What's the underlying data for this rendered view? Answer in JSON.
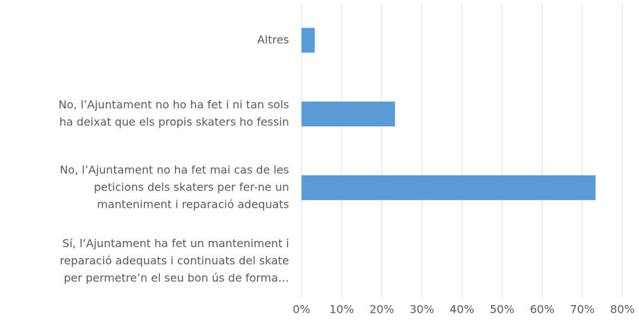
{
  "chart_data": {
    "type": "barh",
    "categories": [
      [
        "Altres"
      ],
      [
        "No, l’Ajuntament no ho ha fet i ni tan sols",
        "ha deixat que els propis skaters ho fessin"
      ],
      [
        "No, l’Ajuntament no ha fet mai cas de les",
        "peticions dels skaters per fer-ne un",
        "manteniment i reparació adequats"
      ],
      [
        "Sí, l’Ajuntament ha fet un manteniment i",
        "reparació adequats i continuats del skate",
        "per permetre’n el seu bon ús de forma…"
      ]
    ],
    "values": [
      3.3,
      23.3,
      73.3,
      0
    ],
    "color": "#5b9bd5",
    "xlim": [
      0,
      80
    ],
    "xticks": [
      {
        "value": 0,
        "label": "0%"
      },
      {
        "value": 10,
        "label": "10%"
      },
      {
        "value": 20,
        "label": "20%"
      },
      {
        "value": 30,
        "label": "30%"
      },
      {
        "value": 40,
        "label": "40%"
      },
      {
        "value": 50,
        "label": "50%"
      },
      {
        "value": 60,
        "label": "60%"
      },
      {
        "value": 70,
        "label": "70%"
      },
      {
        "value": 80,
        "label": "80%"
      }
    ],
    "grid": true
  }
}
